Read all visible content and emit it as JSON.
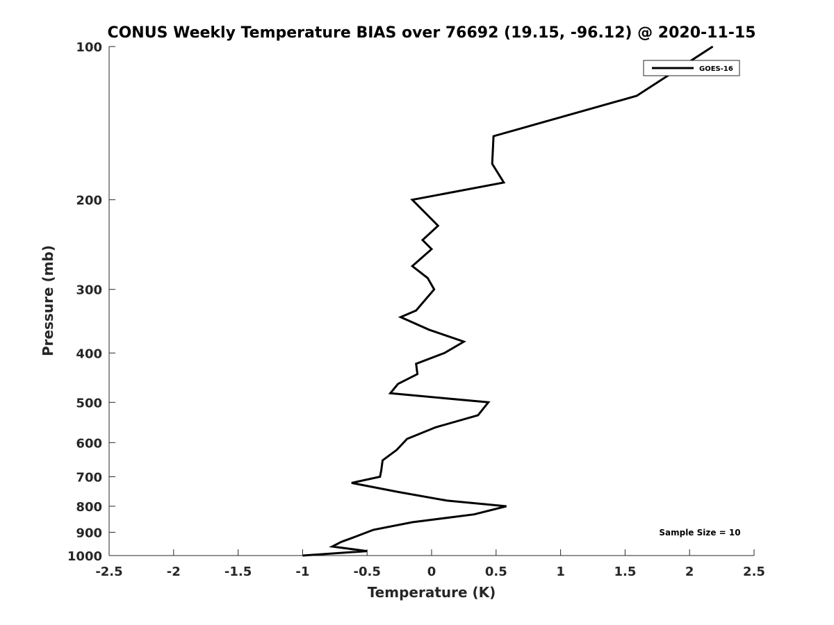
{
  "chart_data": {
    "type": "line",
    "title": "CONUS Weekly Temperature BIAS over 76692 (19.15, -96.12) @ 2020-11-15",
    "xlabel": "Temperature (K)",
    "ylabel": "Pressure (mb)",
    "xlim": [
      -2.5,
      2.5
    ],
    "ylim": [
      1000,
      100
    ],
    "yscale": "log",
    "xticks": [
      "-2.5",
      "-2",
      "-1.5",
      "-1",
      "-0.5",
      "0",
      "0.5",
      "1",
      "1.5",
      "2",
      "2.5"
    ],
    "yticks": [
      "100",
      "200",
      "300",
      "400",
      "500",
      "600",
      "700",
      "800",
      "900",
      "1000"
    ],
    "grid": false,
    "legend_position": "top-right",
    "series": [
      {
        "name": "GOES-16",
        "color": "#000000",
        "points": [
          [
            2.18,
            100
          ],
          [
            1.59,
            125
          ],
          [
            0.48,
            150
          ],
          [
            0.47,
            170
          ],
          [
            0.56,
            185
          ],
          [
            -0.15,
            200
          ],
          [
            0.05,
            225
          ],
          [
            -0.07,
            240
          ],
          [
            0.0,
            250
          ],
          [
            -0.15,
            270
          ],
          [
            -0.03,
            285
          ],
          [
            0.02,
            300
          ],
          [
            -0.12,
            330
          ],
          [
            -0.24,
            340
          ],
          [
            -0.02,
            360
          ],
          [
            0.25,
            380
          ],
          [
            0.1,
            400
          ],
          [
            -0.12,
            420
          ],
          [
            -0.11,
            440
          ],
          [
            -0.26,
            460
          ],
          [
            -0.32,
            480
          ],
          [
            0.44,
            500
          ],
          [
            0.36,
            530
          ],
          [
            0.03,
            560
          ],
          [
            -0.19,
            590
          ],
          [
            -0.27,
            620
          ],
          [
            -0.38,
            650
          ],
          [
            -0.39,
            680
          ],
          [
            -0.4,
            700
          ],
          [
            -0.62,
            720
          ],
          [
            -0.26,
            750
          ],
          [
            0.12,
            780
          ],
          [
            0.58,
            800
          ],
          [
            0.33,
            830
          ],
          [
            -0.15,
            860
          ],
          [
            -0.45,
            890
          ],
          [
            -0.6,
            920
          ],
          [
            -0.7,
            940
          ],
          [
            -0.77,
            960
          ],
          [
            -0.5,
            980
          ],
          [
            -1.0,
            1000
          ]
        ]
      }
    ],
    "annotation": "Sample Size = 10"
  }
}
